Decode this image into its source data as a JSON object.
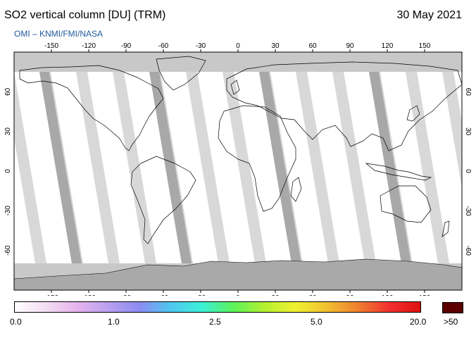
{
  "header": {
    "title": "SO2 vertical column [DU] (TRM)",
    "date": "30 May 2021",
    "source": "OMI  –  KNMI/FMI/NASA"
  },
  "map": {
    "projection": "equirectangular",
    "lon_range": [
      -180,
      180
    ],
    "lat_range": [
      -90,
      90
    ],
    "lon_ticks": [
      -150,
      -120,
      -90,
      -60,
      -30,
      0,
      30,
      60,
      90,
      120,
      150
    ],
    "lat_ticks": [
      60,
      30,
      0,
      -30,
      -60
    ],
    "colors": {
      "ocean_swath": "#ffffff",
      "no_data_light": "#d3d3d3",
      "no_data_dark": "#a8a8a8",
      "polar_no_data": "#c8c8c8",
      "coastline": "#000000"
    }
  },
  "colorbar": {
    "labels": [
      "0.0",
      "1.0",
      "2.5",
      "5.0",
      "20.0"
    ],
    "overflow_label": ">50",
    "overflow_color": "#5a0000",
    "gradient_stops": [
      "#ffffff",
      "#f4ddf4",
      "#e6b3ee",
      "#b9a0f0",
      "#8c8cf2",
      "#4ec8f0",
      "#3cf0d8",
      "#5af25a",
      "#b4f030",
      "#f0f030",
      "#f0c030",
      "#f08030",
      "#f03030",
      "#e01010"
    ]
  }
}
